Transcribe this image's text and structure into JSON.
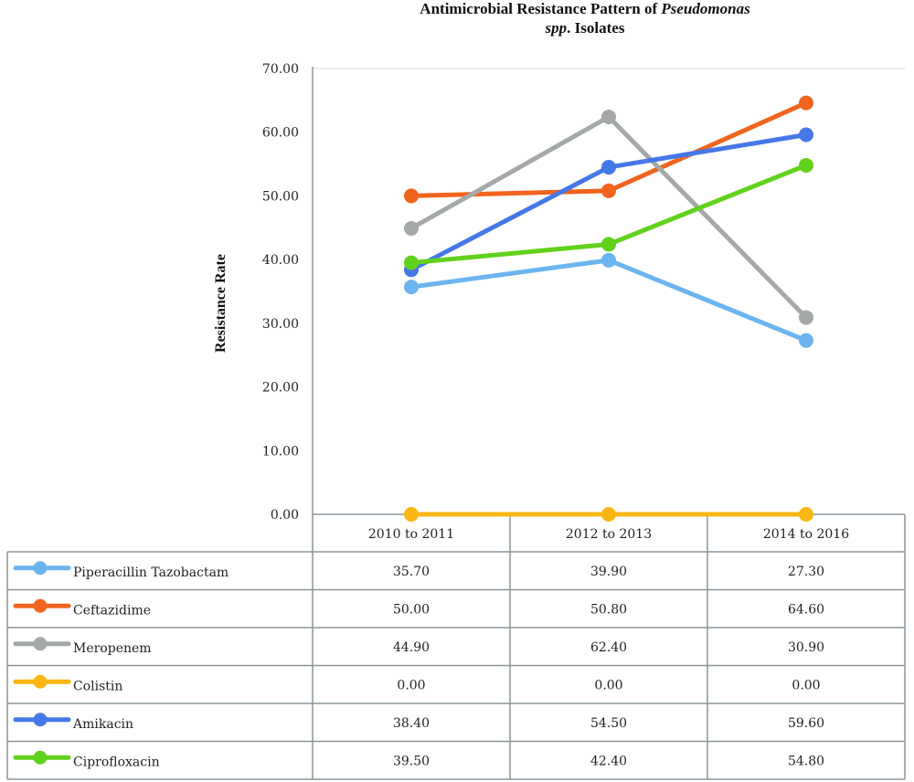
{
  "chart_data": {
    "type": "line",
    "title_line1": "Antimicrobial Resistance Pattern of ",
    "title_italic": "Pseudomonas",
    "title_line2_italic": "spp",
    "title_line2": ". Isolates",
    "xlabel": "",
    "ylabel": "Resistance Rate",
    "ylim": [
      0,
      70
    ],
    "yticks": [
      "0.00",
      "10.00",
      "20.00",
      "30.00",
      "40.00",
      "50.00",
      "60.00",
      "70.00"
    ],
    "categories": [
      "2010 to 2011",
      "2012 to 2013",
      "2014 to 2016"
    ],
    "grid": false,
    "legend_placement": "bottom-table",
    "series": [
      {
        "name": "Piperacillin Tazobactam",
        "color": "#6cb4f0",
        "values": [
          35.7,
          39.9,
          27.3
        ],
        "labels": [
          "35.70",
          "39.90",
          "27.30"
        ]
      },
      {
        "name": "Ceftazidime",
        "color": "#f0641e",
        "values": [
          50.0,
          50.8,
          64.6
        ],
        "labels": [
          "50.00",
          "50.80",
          "64.60"
        ]
      },
      {
        "name": "Meropenem",
        "color": "#a4a9a8",
        "values": [
          44.9,
          62.4,
          30.9
        ],
        "labels": [
          "44.90",
          "62.40",
          "30.90"
        ]
      },
      {
        "name": "Colistin",
        "color": "#fbb614",
        "values": [
          0.0,
          0.0,
          0.0
        ],
        "labels": [
          "0.00",
          "0.00",
          "0.00"
        ]
      },
      {
        "name": "Amikacin",
        "color": "#4677e8",
        "values": [
          38.4,
          54.5,
          59.6
        ],
        "labels": [
          "38.40",
          "54.50",
          "59.60"
        ]
      },
      {
        "name": "Ciprofloxacin",
        "color": "#62d11b",
        "values": [
          39.5,
          42.4,
          54.8
        ],
        "labels": [
          "39.50",
          "42.40",
          "54.80"
        ]
      }
    ]
  }
}
